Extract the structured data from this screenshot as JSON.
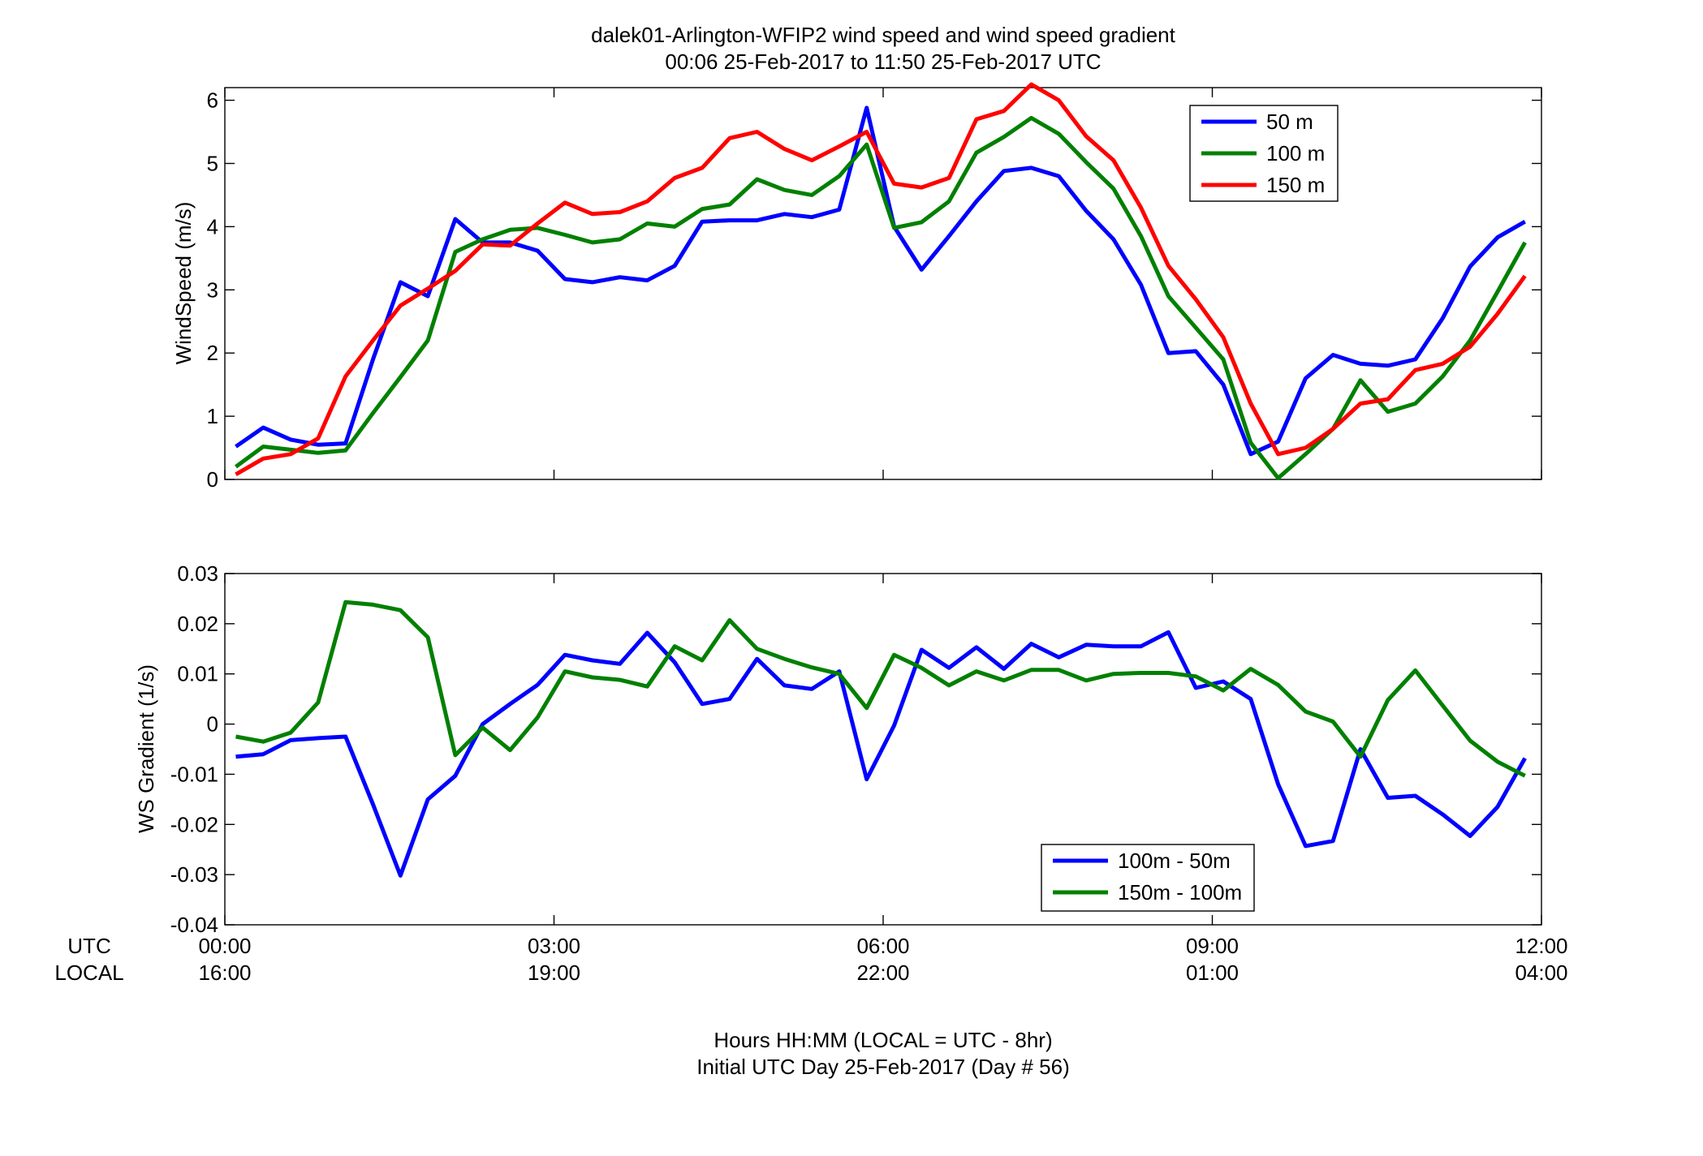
{
  "figure": {
    "title_line1": "dalek01-Arlington-WFIP2  wind speed and wind speed gradient",
    "title_line2": "00:06 25-Feb-2017 to 11:50 25-Feb-2017  UTC",
    "xlabel_line1": "Hours HH:MM  (LOCAL = UTC - 8hr)",
    "xlabel_line2": "Initial UTC Day 25-Feb-2017 (Day # 56)",
    "utc_row_label": "UTC",
    "local_row_label": "LOCAL",
    "x_ticks_hours": [
      0,
      3,
      6,
      9,
      12
    ],
    "utc_tick_labels": [
      "00:00",
      "03:00",
      "06:00",
      "09:00",
      "12:00"
    ],
    "local_tick_labels": [
      "16:00",
      "19:00",
      "22:00",
      "01:00",
      "04:00"
    ],
    "xlim_hours": [
      0,
      12
    ]
  },
  "chart_data": [
    {
      "type": "line",
      "ylabel": "WindSpeed (m/s)",
      "xlim": [
        0,
        12
      ],
      "ylim": [
        0,
        6.2
      ],
      "yticks": [
        0,
        1,
        2,
        3,
        4,
        5,
        6
      ],
      "ytick_labels": [
        "0",
        "1",
        "2",
        "3",
        "4",
        "5",
        "6"
      ],
      "grid": false,
      "legend_position": "top-right",
      "x": [
        0.1,
        0.35,
        0.6,
        0.85,
        1.1,
        1.35,
        1.6,
        1.85,
        2.1,
        2.35,
        2.6,
        2.85,
        3.1,
        3.35,
        3.6,
        3.85,
        4.1,
        4.35,
        4.6,
        4.85,
        5.1,
        5.35,
        5.6,
        5.85,
        6.1,
        6.35,
        6.6,
        6.85,
        7.1,
        7.35,
        7.6,
        7.85,
        8.1,
        8.35,
        8.6,
        8.85,
        9.1,
        9.35,
        9.6,
        9.85,
        10.1,
        10.35,
        10.6,
        10.85,
        11.1,
        11.35,
        11.6,
        11.85
      ],
      "series": [
        {
          "name": "50 m",
          "color": "#0000ff",
          "values": [
            0.52,
            0.82,
            0.63,
            0.55,
            0.57,
            1.9,
            3.12,
            2.9,
            4.12,
            3.75,
            3.75,
            3.62,
            3.17,
            3.12,
            3.2,
            3.15,
            3.38,
            4.08,
            4.1,
            4.1,
            4.2,
            4.15,
            4.27,
            5.88,
            4.0,
            3.32,
            3.85,
            4.4,
            4.88,
            4.93,
            4.8,
            4.25,
            3.8,
            3.08,
            2.0,
            2.03,
            1.5,
            0.4,
            0.6,
            1.6,
            1.97,
            1.83,
            1.8,
            1.9,
            2.55,
            3.37,
            3.83,
            4.08
          ]
        },
        {
          "name": "100 m",
          "color": "#008000",
          "values": [
            0.2,
            0.52,
            0.47,
            0.42,
            0.46,
            1.05,
            1.62,
            2.2,
            3.6,
            3.8,
            3.95,
            3.98,
            3.87,
            3.75,
            3.8,
            4.05,
            4.0,
            4.28,
            4.35,
            4.75,
            4.58,
            4.5,
            4.8,
            5.3,
            3.98,
            4.07,
            4.4,
            5.17,
            5.42,
            5.72,
            5.47,
            5.02,
            4.6,
            3.85,
            2.9,
            2.4,
            1.9,
            0.58,
            0.02,
            0.4,
            0.8,
            1.57,
            1.07,
            1.2,
            1.63,
            2.2,
            2.97,
            3.75
          ]
        },
        {
          "name": "150 m",
          "color": "#ff0000",
          "values": [
            0.08,
            0.33,
            0.4,
            0.65,
            1.63,
            2.2,
            2.75,
            3.02,
            3.3,
            3.72,
            3.7,
            4.05,
            4.38,
            4.2,
            4.23,
            4.4,
            4.77,
            4.93,
            5.4,
            5.5,
            5.23,
            5.05,
            5.27,
            5.5,
            4.68,
            4.62,
            4.77,
            5.7,
            5.83,
            6.25,
            6.0,
            5.43,
            5.05,
            4.3,
            3.38,
            2.85,
            2.25,
            1.2,
            0.4,
            0.5,
            0.8,
            1.2,
            1.27,
            1.73,
            1.83,
            2.1,
            2.62,
            3.22
          ]
        }
      ]
    },
    {
      "type": "line",
      "ylabel": "WS Gradient (1/s)",
      "xlim": [
        0,
        12
      ],
      "ylim": [
        -0.04,
        0.03
      ],
      "yticks": [
        -0.04,
        -0.03,
        -0.02,
        -0.01,
        0,
        0.01,
        0.02,
        0.03
      ],
      "ytick_labels": [
        "-0.04",
        "-0.03",
        "-0.02",
        "-0.01",
        "0",
        "0.01",
        "0.02",
        "0.03"
      ],
      "grid": false,
      "legend_position": "bottom-right",
      "x": [
        0.1,
        0.35,
        0.6,
        0.85,
        1.1,
        1.35,
        1.6,
        1.85,
        2.1,
        2.35,
        2.6,
        2.85,
        3.1,
        3.35,
        3.6,
        3.85,
        4.1,
        4.35,
        4.6,
        4.85,
        5.1,
        5.35,
        5.6,
        5.85,
        6.1,
        6.35,
        6.6,
        6.85,
        7.1,
        7.35,
        7.6,
        7.85,
        8.1,
        8.35,
        8.6,
        8.85,
        9.1,
        9.35,
        9.6,
        9.85,
        10.1,
        10.35,
        10.6,
        10.85,
        11.1,
        11.35,
        11.6,
        11.85
      ],
      "series": [
        {
          "name": "100m - 50m",
          "color": "#0000ff",
          "values": [
            -0.0065,
            -0.006,
            -0.0032,
            -0.0028,
            -0.0025,
            -0.016,
            -0.0302,
            -0.015,
            -0.0103,
            0.0,
            0.004,
            0.0078,
            0.0138,
            0.0127,
            0.012,
            0.0182,
            0.0123,
            0.004,
            0.005,
            0.013,
            0.0077,
            0.007,
            0.0105,
            -0.011,
            -0.0003,
            0.0148,
            0.0112,
            0.0153,
            0.011,
            0.016,
            0.0133,
            0.0158,
            0.0155,
            0.0155,
            0.0183,
            0.0072,
            0.0085,
            0.005,
            -0.012,
            -0.0243,
            -0.0233,
            -0.005,
            -0.0147,
            -0.0143,
            -0.018,
            -0.0223,
            -0.0165,
            -0.0068
          ]
        },
        {
          "name": "150m - 100m",
          "color": "#008000",
          "values": [
            -0.0025,
            -0.0035,
            -0.0017,
            0.0043,
            0.0243,
            0.0238,
            0.0227,
            0.0173,
            -0.0062,
            -0.0007,
            -0.0052,
            0.0013,
            0.0105,
            0.0093,
            0.0088,
            0.0075,
            0.0155,
            0.0127,
            0.0207,
            0.015,
            0.013,
            0.0113,
            0.01,
            0.0032,
            0.0138,
            0.0112,
            0.0077,
            0.0105,
            0.0087,
            0.0108,
            0.0108,
            0.0087,
            0.01,
            0.0102,
            0.0102,
            0.0095,
            0.0067,
            0.011,
            0.0078,
            0.0025,
            0.0005,
            -0.0065,
            0.0048,
            0.0107,
            0.0037,
            -0.0033,
            -0.0075,
            -0.0103
          ]
        }
      ]
    }
  ]
}
